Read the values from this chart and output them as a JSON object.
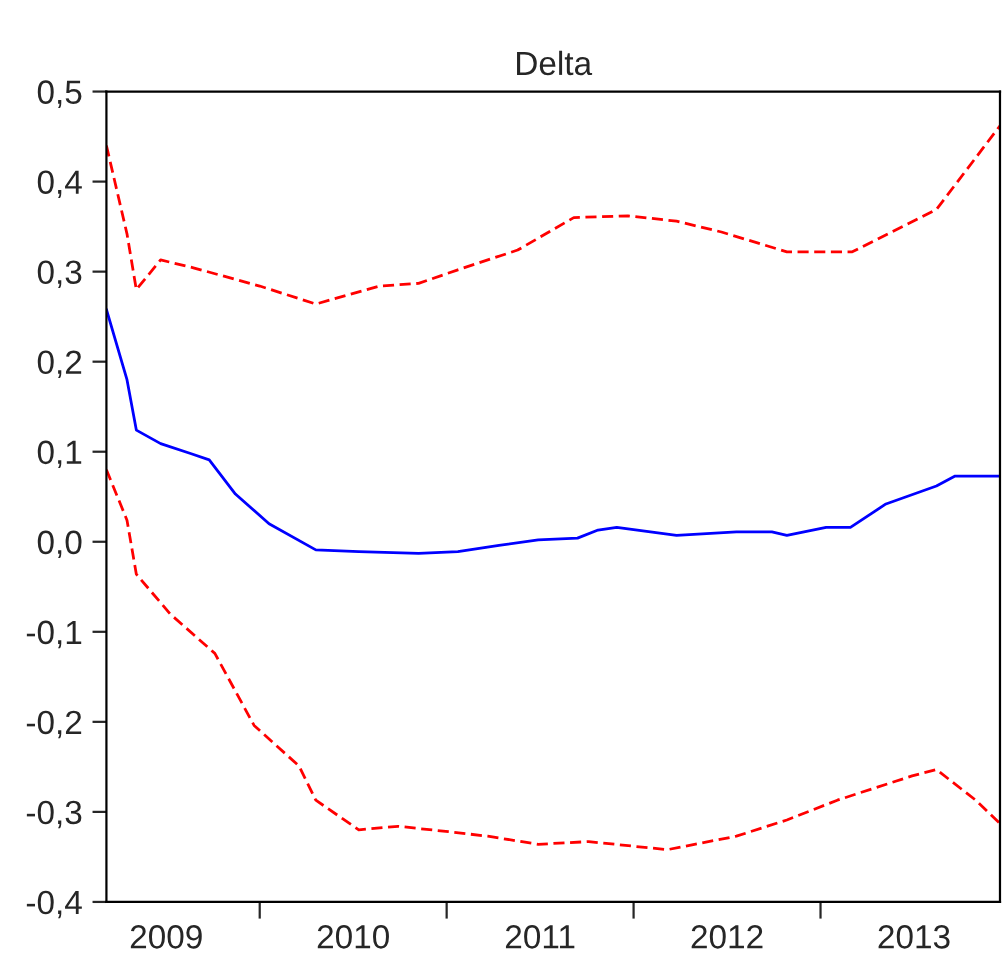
{
  "chart_data": {
    "type": "line",
    "title": "Delta",
    "xlim": [
      2009.18,
      2013.96
    ],
    "xticks": [
      {
        "value": 2009.5,
        "label": "2009"
      },
      {
        "value": 2010.5,
        "label": "2010"
      },
      {
        "value": 2011.5,
        "label": "2011"
      },
      {
        "value": 2012.5,
        "label": "2012"
      },
      {
        "value": 2013.5,
        "label": "2013"
      },
      {
        "value": 2010,
        "label": null
      },
      {
        "value": 2011,
        "label": null
      },
      {
        "value": 2012,
        "label": null
      },
      {
        "value": 2013,
        "label": null
      }
    ],
    "ylim": [
      -0.4,
      0.5
    ],
    "yticks": [
      {
        "value": -0.4,
        "label": "-0,4"
      },
      {
        "value": -0.3,
        "label": "-0,3"
      },
      {
        "value": -0.2,
        "label": "-0,2"
      },
      {
        "value": -0.1,
        "label": "-0,1"
      },
      {
        "value": 0.0,
        "label": "0,0"
      },
      {
        "value": 0.1,
        "label": "0,1"
      },
      {
        "value": 0.2,
        "label": "0,2"
      },
      {
        "value": 0.3,
        "label": "0,3"
      },
      {
        "value": 0.4,
        "label": "0,4"
      },
      {
        "value": 0.5,
        "label": "0,5"
      }
    ],
    "grid": false,
    "legend": false,
    "series": [
      {
        "color": "#0000ff",
        "line_style": "solid",
        "x": [
          2009.18,
          2009.29,
          2009.34,
          2009.47,
          2009.63,
          2009.73,
          2009.87,
          2010.05,
          2010.3,
          2010.53,
          2010.85,
          2011.06,
          2011.28,
          2011.49,
          2011.7,
          2011.81,
          2011.91,
          2012.23,
          2012.55,
          2012.74,
          2012.82,
          2013.03,
          2013.16,
          2013.35,
          2013.62,
          2013.72,
          2013.96
        ],
        "values": [
          0.258,
          0.18,
          0.124,
          0.109,
          0.098,
          0.091,
          0.053,
          0.02,
          -0.009,
          -0.011,
          -0.013,
          -0.011,
          -0.004,
          0.002,
          0.004,
          0.013,
          0.016,
          0.007,
          0.011,
          0.011,
          0.007,
          0.016,
          0.016,
          0.042,
          0.062,
          0.073,
          0.073
        ]
      },
      {
        "color": "#ff0000",
        "line_style": "dashed",
        "x": [
          2009.18,
          2009.29,
          2009.34,
          2009.47,
          2009.65,
          2009.79,
          2010.0,
          2010.3,
          2010.64,
          2010.85,
          2011.06,
          2011.38,
          2011.68,
          2011.97,
          2012.23,
          2012.47,
          2012.82,
          2013.17,
          2013.62,
          2013.96
        ],
        "values": [
          0.44,
          0.342,
          0.28,
          0.313,
          0.304,
          0.296,
          0.284,
          0.264,
          0.284,
          0.287,
          0.302,
          0.324,
          0.36,
          0.362,
          0.356,
          0.344,
          0.322,
          0.322,
          0.369,
          0.462
        ]
      },
      {
        "color": "#ff0000",
        "line_style": "dashed",
        "x": [
          2009.18,
          2009.29,
          2009.34,
          2009.52,
          2009.76,
          2009.97,
          2010.21,
          2010.3,
          2010.53,
          2010.74,
          2011.01,
          2011.22,
          2011.49,
          2011.76,
          2012.18,
          2012.55,
          2012.82,
          2013.09,
          2013.49,
          2013.62,
          2013.83,
          2013.96
        ],
        "values": [
          0.08,
          0.024,
          -0.036,
          -0.08,
          -0.124,
          -0.204,
          -0.249,
          -0.287,
          -0.32,
          -0.316,
          -0.322,
          -0.327,
          -0.336,
          -0.333,
          -0.342,
          -0.327,
          -0.309,
          -0.287,
          -0.26,
          -0.253,
          -0.287,
          -0.313
        ]
      }
    ]
  }
}
